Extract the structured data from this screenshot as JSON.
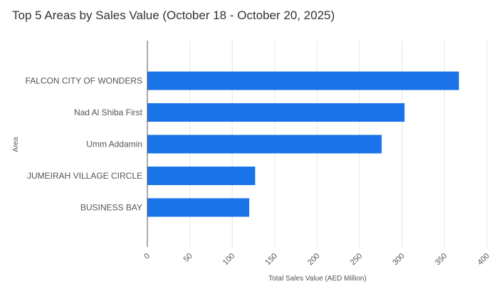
{
  "chart_data": {
    "type": "bar",
    "orientation": "horizontal",
    "title": "Top 5 Areas by Sales Value (October 18 - October 20, 2025)",
    "xlabel": "Total Sales Value (AED Million)",
    "ylabel": "Area",
    "categories": [
      "FALCON CITY OF WONDERS",
      "Nad Al Shiba First",
      "Umm Addamin",
      "JUMEIRAH VILLAGE CIRCLE",
      "BUSINESS BAY"
    ],
    "values": [
      367,
      303,
      276,
      127,
      120
    ],
    "xlim": [
      0,
      400
    ],
    "xticks": [
      "0",
      "50",
      "100",
      "150",
      "200",
      "250",
      "300",
      "350",
      "400"
    ],
    "grid": "vertical",
    "legend": "none",
    "colors": {
      "bar": "#1a73e8",
      "grid": "#e6e6e6",
      "axis": "#555555",
      "text": "#555555",
      "title": "#333333"
    }
  }
}
